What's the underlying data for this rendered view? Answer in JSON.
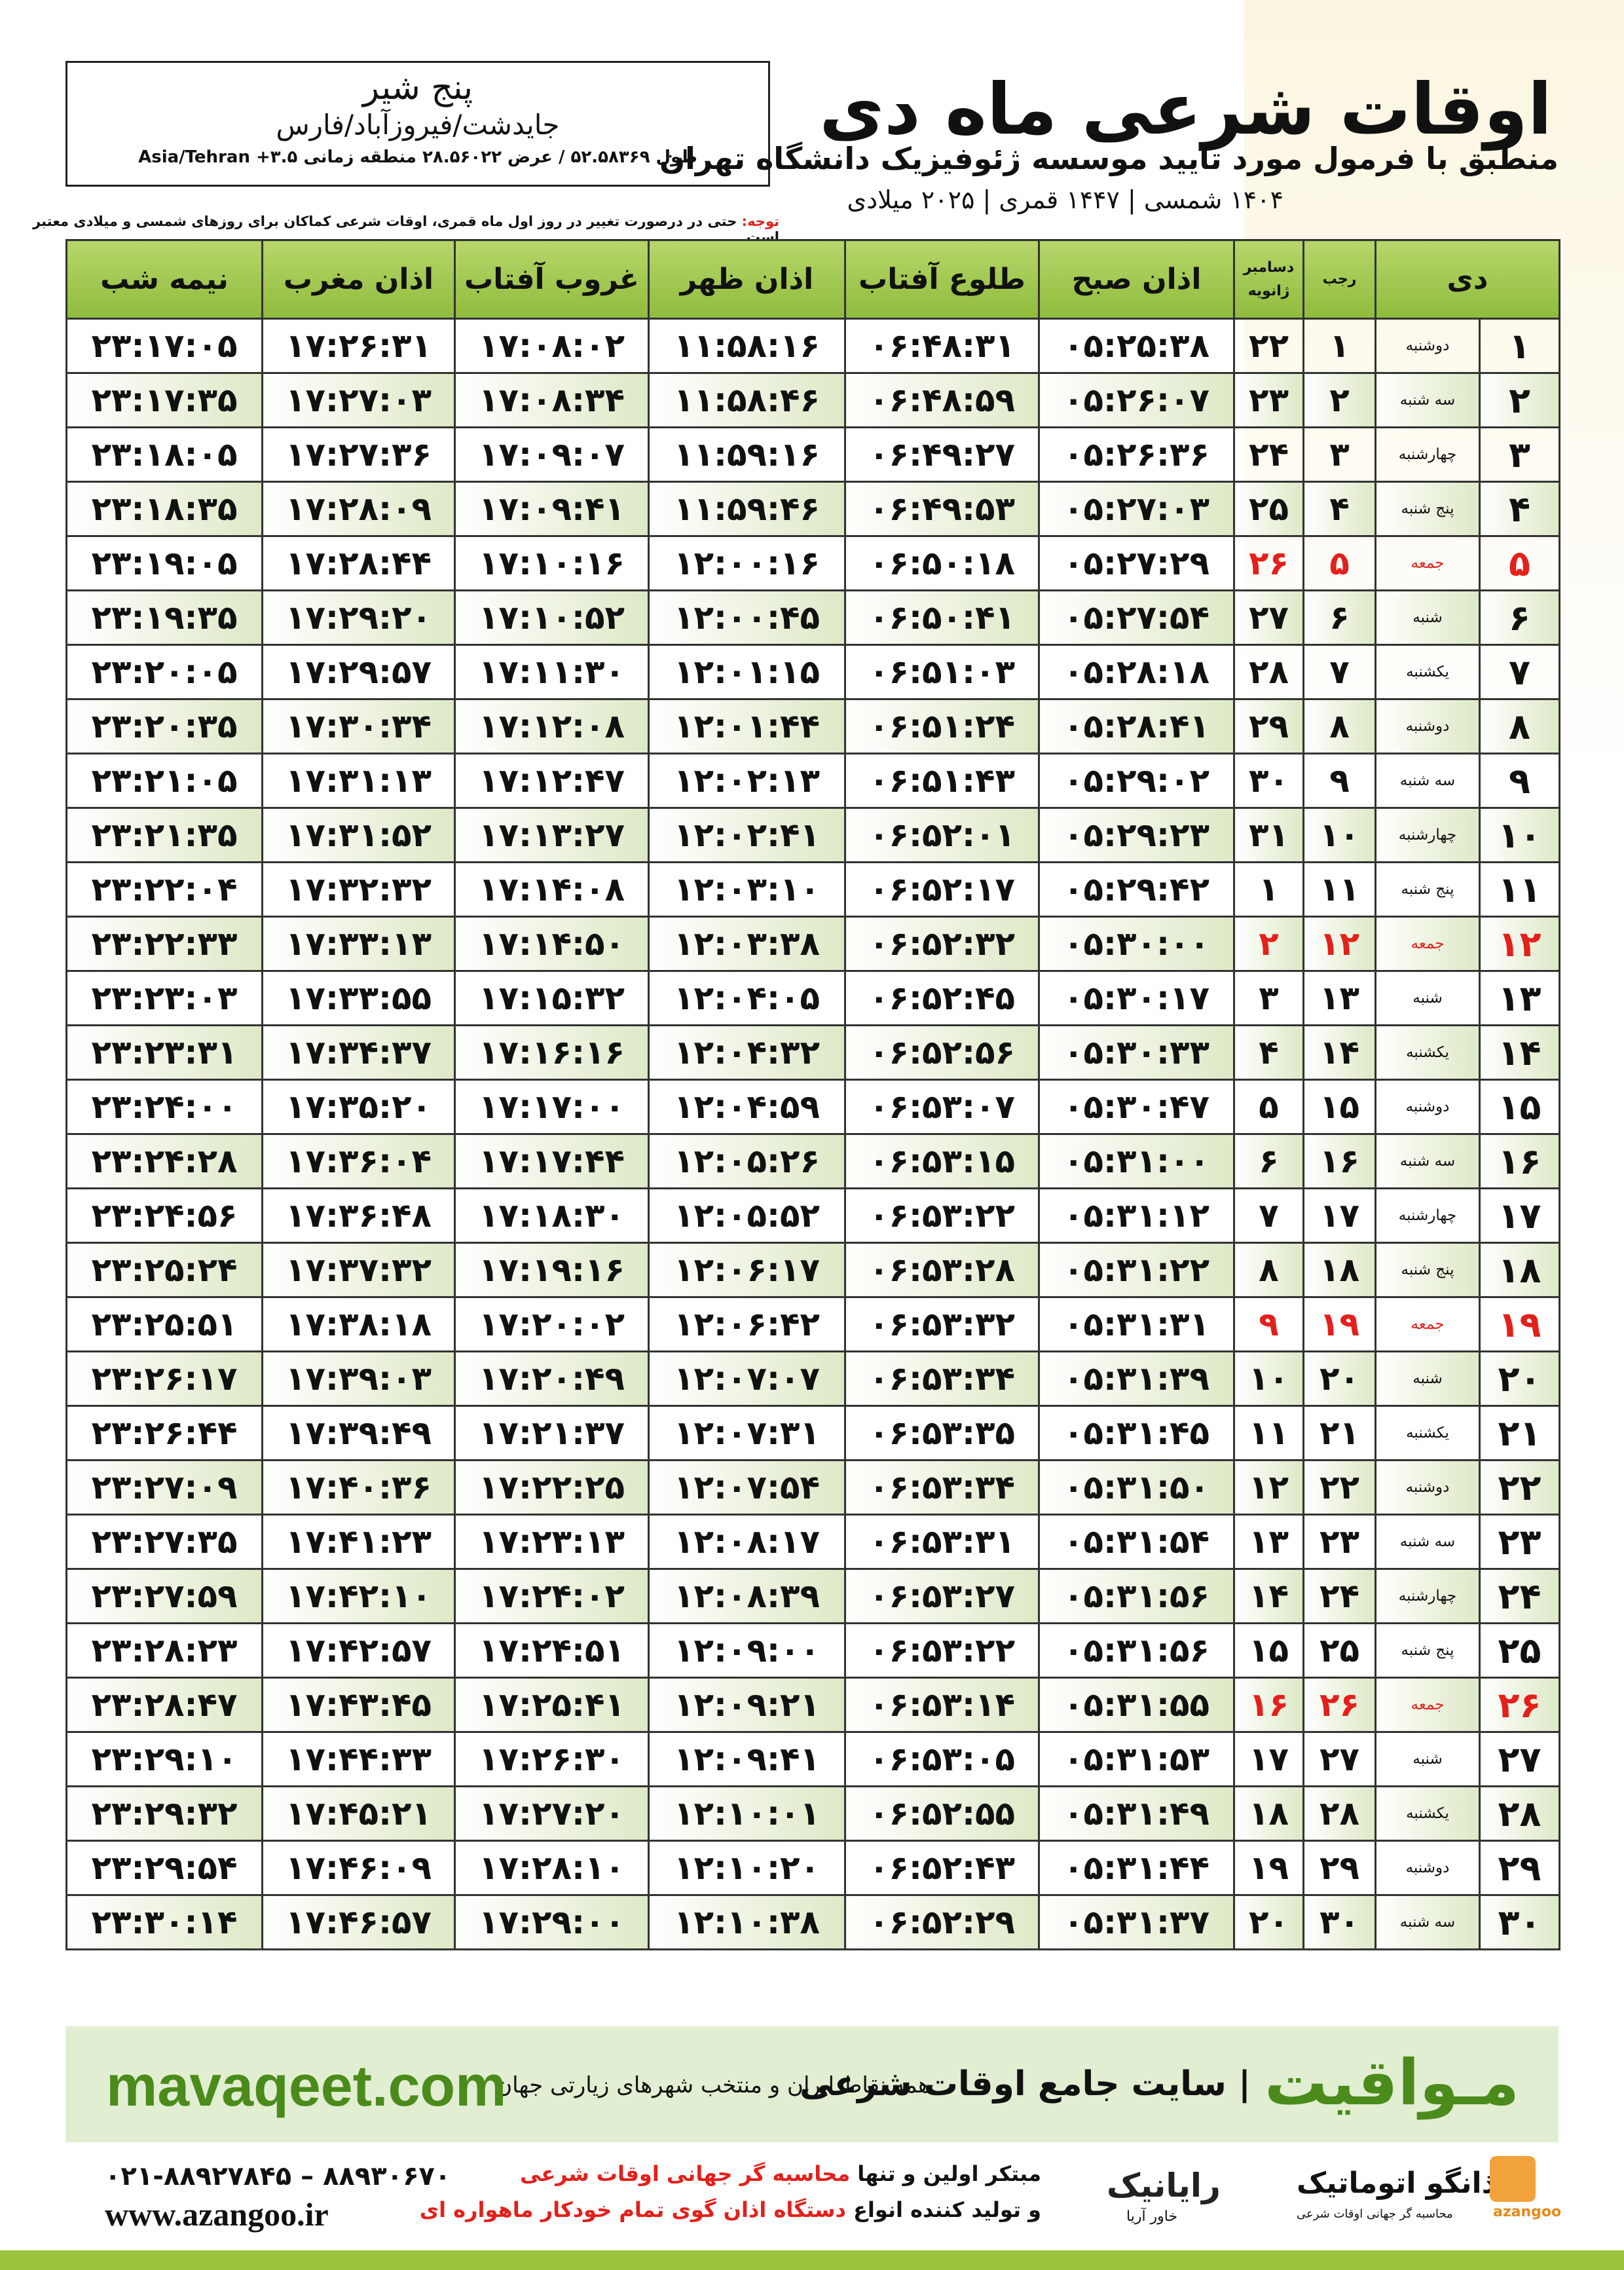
{
  "header": {
    "title": "اوقات شرعی ماه دی",
    "subtitle": "منطبق با فرمول مورد تایید موسسه ژئوفیزیک دانشگاه تهران",
    "dates": "۱۴۰۴ شمسی | ۱۴۴۷ قمری | ۲۰۲۵ میلادی"
  },
  "location": {
    "city": "پنج شیر",
    "region": "جایدشت/فیروزآباد/فارس",
    "coords": "طول ۵۲.۵۸۳۶۹ / عرض ۲۸.۵۶۰۲۲ منطقه زمانی ۳.۵+ Asia/Tehran"
  },
  "note": {
    "label": "توجه:",
    "text": "حتی در درصورت تغییر در روز اول ماه قمری، اوقات شرعی کماکان برای روزهای شمسی و میلادی معتبر است."
  },
  "table": {
    "header": [
      "دی",
      "رجب",
      "دسامبر",
      "ژانویه",
      "اذان صبح",
      "طلوع آفتاب",
      "اذان ظهر",
      "غروب آفتاب",
      "اذان مغرب",
      "نیمه شب"
    ],
    "rows": [
      {
        "cells": [
          "۱",
          "دوشنبه",
          "۱",
          "۲۲",
          "۰۵:۲۵:۳۸",
          "۰۶:۴۸:۳۱",
          "۱۱:۵۸:۱۶",
          "۱۷:۰۸:۰۲",
          "۱۷:۲۶:۳۱",
          "۲۳:۱۷:۰۵"
        ]
      },
      {
        "cells": [
          "۲",
          "سه شنبه",
          "۲",
          "۲۳",
          "۰۵:۲۶:۰۷",
          "۰۶:۴۸:۵۹",
          "۱۱:۵۸:۴۶",
          "۱۷:۰۸:۳۴",
          "۱۷:۲۷:۰۳",
          "۲۳:۱۷:۳۵"
        ]
      },
      {
        "cells": [
          "۳",
          "چهارشنبه",
          "۳",
          "۲۴",
          "۰۵:۲۶:۳۶",
          "۰۶:۴۹:۲۷",
          "۱۱:۵۹:۱۶",
          "۱۷:۰۹:۰۷",
          "۱۷:۲۷:۳۶",
          "۲۳:۱۸:۰۵"
        ]
      },
      {
        "cells": [
          "۴",
          "پنج شنبه",
          "۴",
          "۲۵",
          "۰۵:۲۷:۰۳",
          "۰۶:۴۹:۵۳",
          "۱۱:۵۹:۴۶",
          "۱۷:۰۹:۴۱",
          "۱۷:۲۸:۰۹",
          "۲۳:۱۸:۳۵"
        ]
      },
      {
        "cells": [
          "۵",
          "جمعه",
          "۵",
          "۲۶",
          "۰۵:۲۷:۲۹",
          "۰۶:۵۰:۱۸",
          "۱۲:۰۰:۱۶",
          "۱۷:۱۰:۱۶",
          "۱۷:۲۸:۴۴",
          "۲۳:۱۹:۰۵"
        ],
        "color": "#e3201b"
      },
      {
        "cells": [
          "۶",
          "شنبه",
          "۶",
          "۲۷",
          "۰۵:۲۷:۵۴",
          "۰۶:۵۰:۴۱",
          "۱۲:۰۰:۴۵",
          "۱۷:۱۰:۵۲",
          "۱۷:۲۹:۲۰",
          "۲۳:۱۹:۳۵"
        ]
      },
      {
        "cells": [
          "۷",
          "یکشنبه",
          "۷",
          "۲۸",
          "۰۵:۲۸:۱۸",
          "۰۶:۵۱:۰۳",
          "۱۲:۰۱:۱۵",
          "۱۷:۱۱:۳۰",
          "۱۷:۲۹:۵۷",
          "۲۳:۲۰:۰۵"
        ]
      },
      {
        "cells": [
          "۸",
          "دوشنبه",
          "۸",
          "۲۹",
          "۰۵:۲۸:۴۱",
          "۰۶:۵۱:۲۴",
          "۱۲:۰۱:۴۴",
          "۱۷:۱۲:۰۸",
          "۱۷:۳۰:۳۴",
          "۲۳:۲۰:۳۵"
        ]
      },
      {
        "cells": [
          "۹",
          "سه شنبه",
          "۹",
          "۳۰",
          "۰۵:۲۹:۰۲",
          "۰۶:۵۱:۴۳",
          "۱۲:۰۲:۱۳",
          "۱۷:۱۲:۴۷",
          "۱۷:۳۱:۱۳",
          "۲۳:۲۱:۰۵"
        ]
      },
      {
        "cells": [
          "۱۰",
          "چهارشنبه",
          "۱۰",
          "۳۱",
          "۰۵:۲۹:۲۳",
          "۰۶:۵۲:۰۱",
          "۱۲:۰۲:۴۱",
          "۱۷:۱۳:۲۷",
          "۱۷:۳۱:۵۲",
          "۲۳:۲۱:۳۵"
        ]
      },
      {
        "cells": [
          "۱۱",
          "پنج شنبه",
          "۱۱",
          "۱",
          "۰۵:۲۹:۴۲",
          "۰۶:۵۲:۱۷",
          "۱۲:۰۳:۱۰",
          "۱۷:۱۴:۰۸",
          "۱۷:۳۲:۳۲",
          "۲۳:۲۲:۰۴"
        ]
      },
      {
        "cells": [
          "۱۲",
          "جمعه",
          "۱۲",
          "۲",
          "۰۵:۳۰:۰۰",
          "۰۶:۵۲:۳۲",
          "۱۲:۰۳:۳۸",
          "۱۷:۱۴:۵۰",
          "۱۷:۳۳:۱۳",
          "۲۳:۲۲:۳۳"
        ],
        "color": "#e3201b"
      },
      {
        "cells": [
          "۱۳",
          "شنبه",
          "۱۳",
          "۳",
          "۰۵:۳۰:۱۷",
          "۰۶:۵۲:۴۵",
          "۱۲:۰۴:۰۵",
          "۱۷:۱۵:۳۲",
          "۱۷:۳۳:۵۵",
          "۲۳:۲۳:۰۳"
        ]
      },
      {
        "cells": [
          "۱۴",
          "یکشنبه",
          "۱۴",
          "۴",
          "۰۵:۳۰:۳۳",
          "۰۶:۵۲:۵۶",
          "۱۲:۰۴:۳۲",
          "۱۷:۱۶:۱۶",
          "۱۷:۳۴:۳۷",
          "۲۳:۲۳:۳۱"
        ]
      },
      {
        "cells": [
          "۱۵",
          "دوشنبه",
          "۱۵",
          "۵",
          "۰۵:۳۰:۴۷",
          "۰۶:۵۳:۰۷",
          "۱۲:۰۴:۵۹",
          "۱۷:۱۷:۰۰",
          "۱۷:۳۵:۲۰",
          "۲۳:۲۴:۰۰"
        ]
      },
      {
        "cells": [
          "۱۶",
          "سه شنبه",
          "۱۶",
          "۶",
          "۰۵:۳۱:۰۰",
          "۰۶:۵۳:۱۵",
          "۱۲:۰۵:۲۶",
          "۱۷:۱۷:۴۴",
          "۱۷:۳۶:۰۴",
          "۲۳:۲۴:۲۸"
        ]
      },
      {
        "cells": [
          "۱۷",
          "چهارشنبه",
          "۱۷",
          "۷",
          "۰۵:۳۱:۱۲",
          "۰۶:۵۳:۲۲",
          "۱۲:۰۵:۵۲",
          "۱۷:۱۸:۳۰",
          "۱۷:۳۶:۴۸",
          "۲۳:۲۴:۵۶"
        ]
      },
      {
        "cells": [
          "۱۸",
          "پنج شنبه",
          "۱۸",
          "۸",
          "۰۵:۳۱:۲۲",
          "۰۶:۵۳:۲۸",
          "۱۲:۰۶:۱۷",
          "۱۷:۱۹:۱۶",
          "۱۷:۳۷:۳۲",
          "۲۳:۲۵:۲۴"
        ]
      },
      {
        "cells": [
          "۱۹",
          "جمعه",
          "۱۹",
          "۹",
          "۰۵:۳۱:۳۱",
          "۰۶:۵۳:۳۲",
          "۱۲:۰۶:۴۲",
          "۱۷:۲۰:۰۲",
          "۱۷:۳۸:۱۸",
          "۲۳:۲۵:۵۱"
        ],
        "color": "#e3201b"
      },
      {
        "cells": [
          "۲۰",
          "شنبه",
          "۲۰",
          "۱۰",
          "۰۵:۳۱:۳۹",
          "۰۶:۵۳:۳۴",
          "۱۲:۰۷:۰۷",
          "۱۷:۲۰:۴۹",
          "۱۷:۳۹:۰۳",
          "۲۳:۲۶:۱۷"
        ]
      },
      {
        "cells": [
          "۲۱",
          "یکشنبه",
          "۲۱",
          "۱۱",
          "۰۵:۳۱:۴۵",
          "۰۶:۵۳:۳۵",
          "۱۲:۰۷:۳۱",
          "۱۷:۲۱:۳۷",
          "۱۷:۳۹:۴۹",
          "۲۳:۲۶:۴۴"
        ]
      },
      {
        "cells": [
          "۲۲",
          "دوشنبه",
          "۲۲",
          "۱۲",
          "۰۵:۳۱:۵۰",
          "۰۶:۵۳:۳۴",
          "۱۲:۰۷:۵۴",
          "۱۷:۲۲:۲۵",
          "۱۷:۴۰:۳۶",
          "۲۳:۲۷:۰۹"
        ]
      },
      {
        "cells": [
          "۲۳",
          "سه شنبه",
          "۲۳",
          "۱۳",
          "۰۵:۳۱:۵۴",
          "۰۶:۵۳:۳۱",
          "۱۲:۰۸:۱۷",
          "۱۷:۲۳:۱۳",
          "۱۷:۴۱:۲۳",
          "۲۳:۲۷:۳۵"
        ]
      },
      {
        "cells": [
          "۲۴",
          "چهارشنبه",
          "۲۴",
          "۱۴",
          "۰۵:۳۱:۵۶",
          "۰۶:۵۳:۲۷",
          "۱۲:۰۸:۳۹",
          "۱۷:۲۴:۰۲",
          "۱۷:۴۲:۱۰",
          "۲۳:۲۷:۵۹"
        ]
      },
      {
        "cells": [
          "۲۵",
          "پنج شنبه",
          "۲۵",
          "۱۵",
          "۰۵:۳۱:۵۶",
          "۰۶:۵۳:۲۲",
          "۱۲:۰۹:۰۰",
          "۱۷:۲۴:۵۱",
          "۱۷:۴۲:۵۷",
          "۲۳:۲۸:۲۳"
        ]
      },
      {
        "cells": [
          "۲۶",
          "جمعه",
          "۲۶",
          "۱۶",
          "۰۵:۳۱:۵۵",
          "۰۶:۵۳:۱۴",
          "۱۲:۰۹:۲۱",
          "۱۷:۲۵:۴۱",
          "۱۷:۴۳:۴۵",
          "۲۳:۲۸:۴۷"
        ],
        "color": "#e3201b"
      },
      {
        "cells": [
          "۲۷",
          "شنبه",
          "۲۷",
          "۱۷",
          "۰۵:۳۱:۵۳",
          "۰۶:۵۳:۰۵",
          "۱۲:۰۹:۴۱",
          "۱۷:۲۶:۳۰",
          "۱۷:۴۴:۳۳",
          "۲۳:۲۹:۱۰"
        ]
      },
      {
        "cells": [
          "۲۸",
          "یکشنبه",
          "۲۸",
          "۱۸",
          "۰۵:۳۱:۴۹",
          "۰۶:۵۲:۵۵",
          "۱۲:۱۰:۰۱",
          "۱۷:۲۷:۲۰",
          "۱۷:۴۵:۲۱",
          "۲۳:۲۹:۳۲"
        ]
      },
      {
        "cells": [
          "۲۹",
          "دوشنبه",
          "۲۹",
          "۱۹",
          "۰۵:۳۱:۴۴",
          "۰۶:۵۲:۴۳",
          "۱۲:۱۰:۲۰",
          "۱۷:۲۸:۱۰",
          "۱۷:۴۶:۰۹",
          "۲۳:۲۹:۵۴"
        ]
      },
      {
        "cells": [
          "۳۰",
          "سه شنبه",
          "۳۰",
          "۲۰",
          "۰۵:۳۱:۳۷",
          "۰۶:۵۲:۲۹",
          "۱۲:۱۰:۳۸",
          "۱۷:۲۹:۰۰",
          "۱۷:۴۶:۵۷",
          "۲۳:۳۰:۱۴"
        ]
      }
    ]
  },
  "banner": {
    "brand": "مـواقیت",
    "slogan": "| سایت جامع اوقات شرعی",
    "scope": "همه نقاط ایران و منتخب شهرهای زیارتی جهان",
    "site": "mavaqeet.com"
  },
  "footer": {
    "phone": "۰۲۱-۸۸۹۲۷۸۴۵ – ۸۸۹۳۰۶۷۰",
    "web": "www.azangoo.ir",
    "line1_a": "مبتکر اولین و تنها",
    "line1_b": "محاسبه گر جهانی اوقات شرعی",
    "line2_a": "و تولید کننده انواع",
    "line2_b": "دستگاه اذان گوی تمام خودکار ماهواره ای",
    "brand1": "رایانیک",
    "brand1_sub": "خاور آریا",
    "brand2": "اذانگو اتوماتیک",
    "brand2_sub": "محاسبه گر جهانی اوقات شرعی",
    "brand2_latin": "azangoo"
  }
}
